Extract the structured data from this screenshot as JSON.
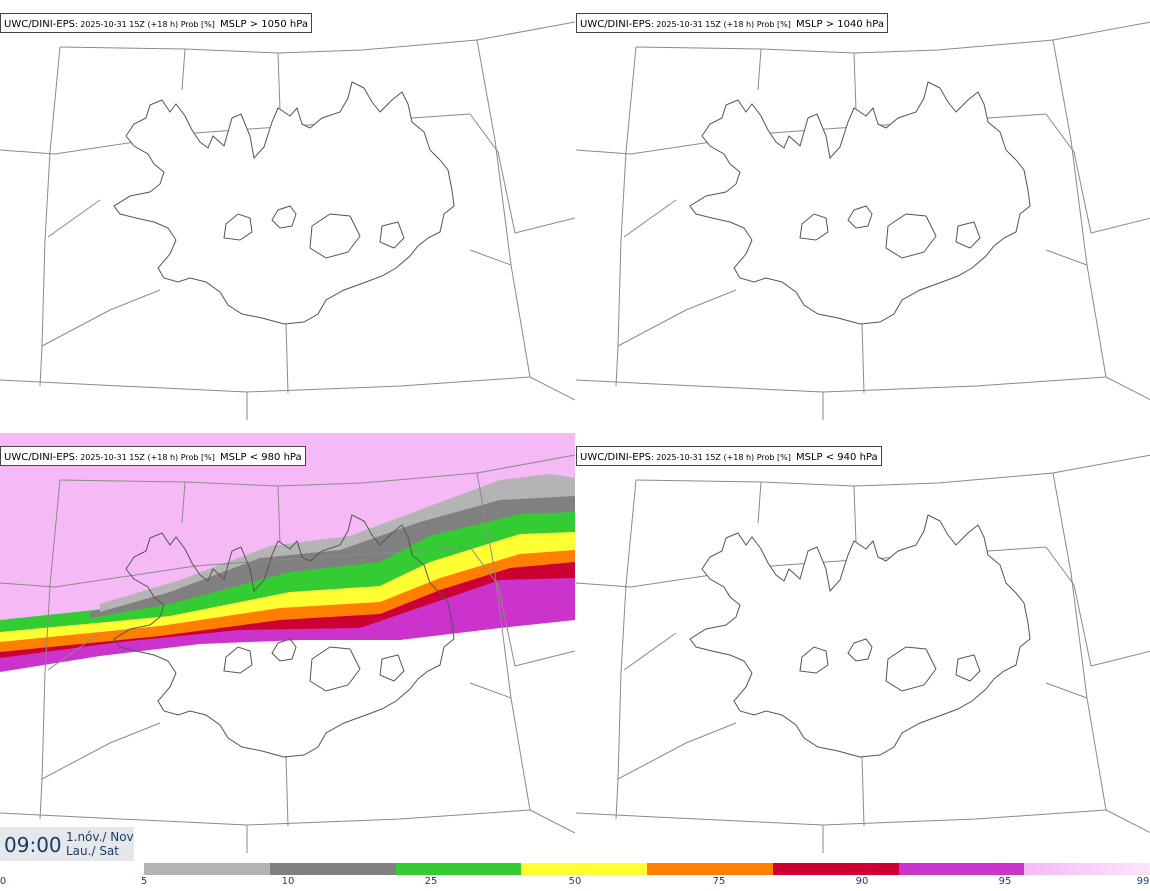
{
  "panels": [
    {
      "model": "UWC/DINI-EPS",
      "meta": "2025-10-31 15Z (+18 h) Prob [%]",
      "field": "MSLP > 1050 hPa"
    },
    {
      "model": "UWC/DINI-EPS",
      "meta": "2025-10-31 15Z (+18 h) Prob [%]",
      "field": "MSLP > 1040 hPa"
    },
    {
      "model": "UWC/DINI-EPS",
      "meta": "2025-10-31 15Z (+18 h) Prob [%]",
      "field": "MSLP < 980 hPa"
    },
    {
      "model": "UWC/DINI-EPS",
      "meta": "2025-10-31 15Z (+18 h) Prob [%]",
      "field": "MSLP < 940 hPa"
    }
  ],
  "valid_time": {
    "time": "09:00",
    "date_line1": "1.nóv./ Nov",
    "date_line2": "Lau./ Sat"
  },
  "legend": {
    "ticks": [
      "0",
      "5",
      "10",
      "25",
      "50",
      "75",
      "90",
      "95",
      "99"
    ],
    "colors": [
      "#ffffff",
      "#b4b4b4",
      "#808080",
      "#33cc33",
      "#ffff33",
      "#ff7f00",
      "#cc0033",
      "#cc33cc",
      "#f5b9f5"
    ]
  }
}
